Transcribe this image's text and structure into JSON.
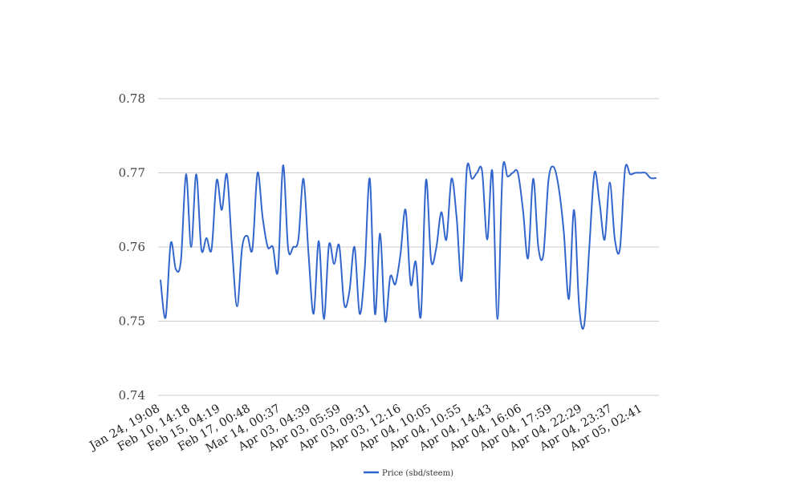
{
  "chart_data": {
    "type": "line",
    "title": "",
    "xlabel": "",
    "ylabel": "",
    "ylim": [
      0.74,
      0.78
    ],
    "yticks": [
      "0.74",
      "0.75",
      "0.76",
      "0.77",
      "0.78"
    ],
    "x_tick_labels": [
      "Jan 24, 19:08",
      "Feb 10, 14:18",
      "Feb 15, 04:19",
      "Feb 17, 00:48",
      "Mar 14, 00:37",
      "Apr 03, 04:39",
      "Apr 03, 05:59",
      "Apr 03, 09:31",
      "Apr 03, 12:16",
      "Apr 04, 10:05",
      "Apr 04, 10:55",
      "Apr 04, 14:43",
      "Apr 04, 16:06",
      "Apr 04, 17:59",
      "Apr 04, 22:29",
      "Apr 04, 23:37",
      "Apr 05, 02:41"
    ],
    "grid": true,
    "legend_position": "bottom",
    "series": [
      {
        "name": "Price (sbd/steem)",
        "color": "#3366cc",
        "values": [
          0.7555,
          0.7505,
          0.7605,
          0.757,
          0.7582,
          0.7698,
          0.76,
          0.7698,
          0.7597,
          0.7612,
          0.7597,
          0.769,
          0.765,
          0.7698,
          0.76,
          0.752,
          0.76,
          0.7615,
          0.7597,
          0.77,
          0.764,
          0.76,
          0.76,
          0.7568,
          0.771,
          0.7598,
          0.76,
          0.761,
          0.7692,
          0.759,
          0.751,
          0.7608,
          0.7503,
          0.7603,
          0.7577,
          0.7602,
          0.7522,
          0.754,
          0.76,
          0.751,
          0.757,
          0.7692,
          0.751,
          0.7618,
          0.75,
          0.756,
          0.755,
          0.759,
          0.765,
          0.755,
          0.758,
          0.7507,
          0.769,
          0.7582,
          0.7598,
          0.7647,
          0.761,
          0.7692,
          0.764,
          0.7555,
          0.7705,
          0.7692,
          0.77,
          0.7702,
          0.761,
          0.7702,
          0.7503,
          0.7702,
          0.7695,
          0.77,
          0.77,
          0.765,
          0.7585,
          0.7692,
          0.76,
          0.759,
          0.769,
          0.7708,
          0.768,
          0.762,
          0.753,
          0.765,
          0.752,
          0.7495,
          0.76,
          0.77,
          0.766,
          0.761,
          0.7687,
          0.761,
          0.7598,
          0.7705,
          0.7698,
          0.77,
          0.77,
          0.77,
          0.7693,
          0.7693
        ]
      }
    ]
  }
}
